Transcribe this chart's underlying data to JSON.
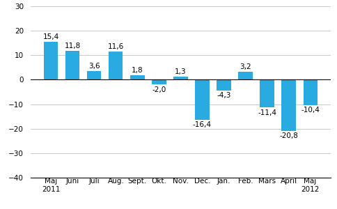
{
  "categories": [
    "Maj",
    "Juni",
    "Juli",
    "Aug.",
    "Sept.",
    "Okt.",
    "Nov.",
    "Dec.",
    "Jan.",
    "Feb.",
    "Mars",
    "April",
    "Maj"
  ],
  "values": [
    15.4,
    11.8,
    3.6,
    11.6,
    1.8,
    -2.0,
    1.3,
    -16.4,
    -4.3,
    3.2,
    -11.4,
    -20.8,
    -10.4
  ],
  "year_below": {
    "0": "2011",
    "12": "2012"
  },
  "bar_color": "#29abe2",
  "ylim": [
    -40,
    30
  ],
  "yticks": [
    -40,
    -30,
    -20,
    -10,
    0,
    10,
    20,
    30
  ],
  "label_fontsize": 7.5,
  "tick_fontsize": 7.5,
  "background_color": "#ffffff",
  "grid_color": "#c8c8c8"
}
